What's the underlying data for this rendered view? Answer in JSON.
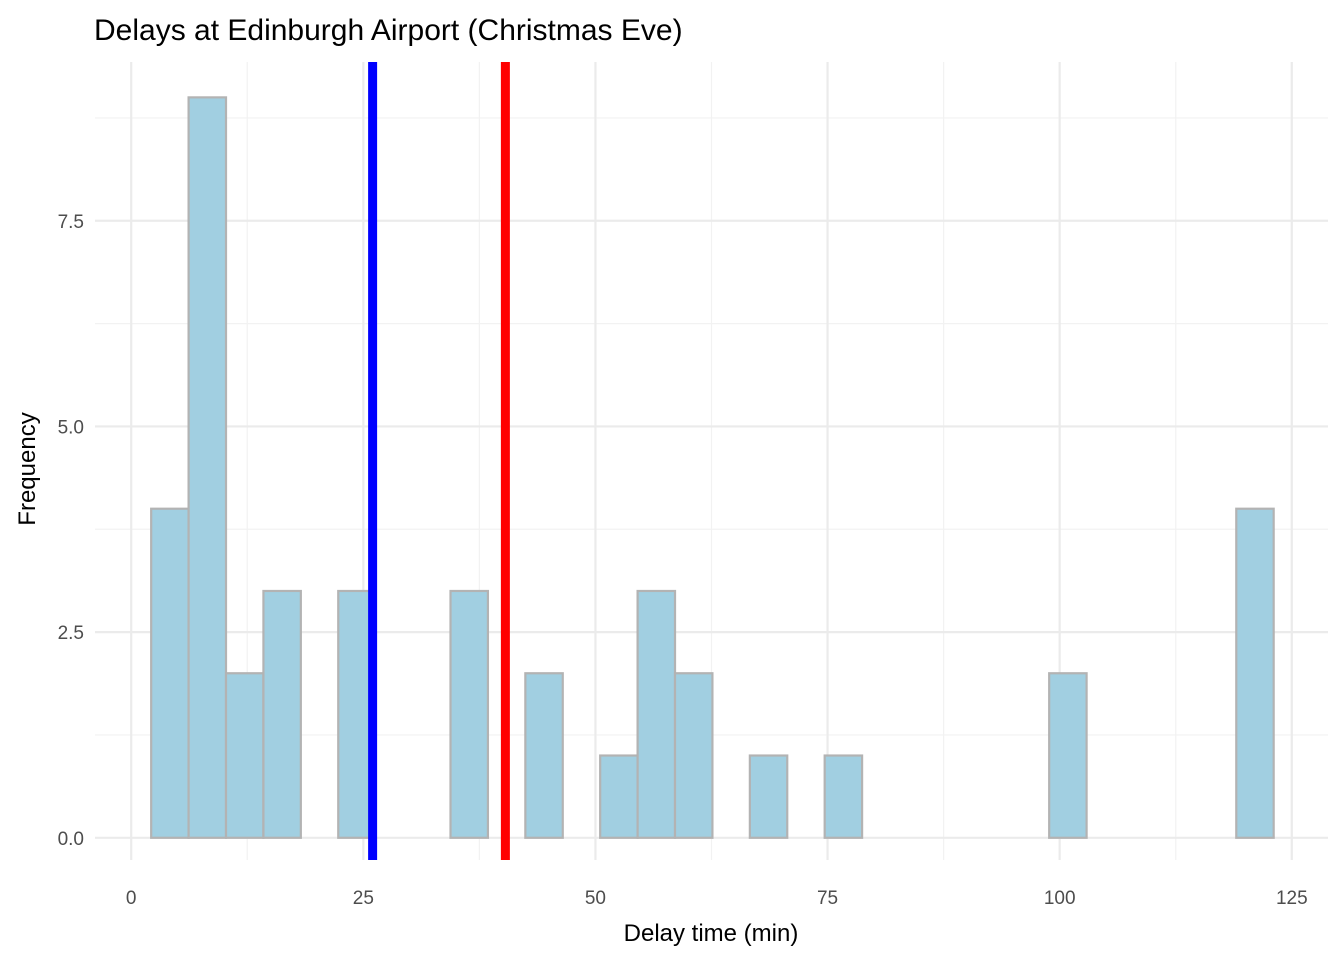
{
  "chart_data": {
    "type": "bar",
    "subtype": "histogram",
    "title": "Delays at Edinburgh Airport (Christmas Eve)",
    "xlabel": "Delay time (min)",
    "ylabel": "Frequency",
    "xlim": [
      -3.9,
      128.9
    ],
    "ylim": [
      -0.27,
      9.43
    ],
    "x_ticks": [
      0,
      25,
      50,
      75,
      100,
      125
    ],
    "x_tick_labels": [
      "0",
      "25",
      "50",
      "75",
      "100",
      "125"
    ],
    "y_ticks": [
      0,
      2.5,
      5,
      7.5
    ],
    "y_tick_labels": [
      "0.0",
      "2.5",
      "5.0",
      "7.5"
    ],
    "grid": true,
    "bin_start": 2.15,
    "bin_width": 4.03,
    "counts": [
      4,
      9,
      2,
      3,
      0,
      3,
      0,
      0,
      3,
      0,
      2,
      0,
      1,
      3,
      2,
      0,
      1,
      0,
      1,
      0,
      0,
      0,
      0,
      0,
      2,
      0,
      0,
      0,
      0,
      4
    ],
    "bar_fill": "#a1cfe1",
    "bar_stroke": "#b3b3b3",
    "vlines": [
      {
        "x": 26.0,
        "color": "#0000ff"
      },
      {
        "x": 40.3,
        "color": "#ff0000"
      }
    ]
  }
}
